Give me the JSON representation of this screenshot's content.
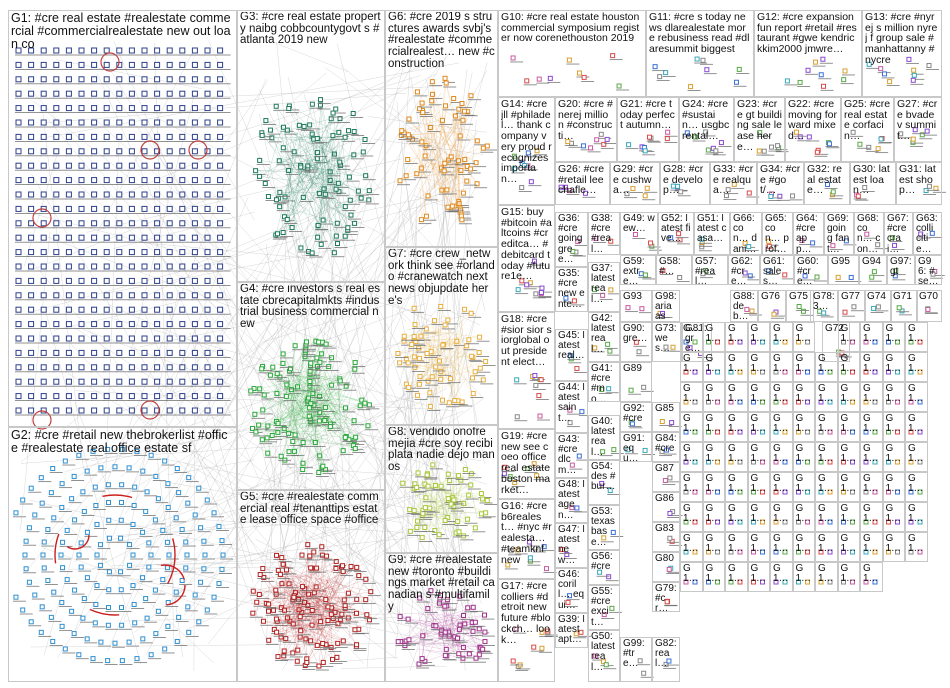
{
  "groups": [
    {
      "id": "G1",
      "label": "G1: #cre real estate #realestate commercial #commercialrealestate new out loan co"
    },
    {
      "id": "G2",
      "label": "G2: #cre #retail new thebrokerlist #office #realestate real office estate sf"
    },
    {
      "id": "G3",
      "label": "G3: #cre real estate property naibg cobbcountygovt s #atlanta 2019 new"
    },
    {
      "id": "G4",
      "label": "G4: #cre investors s real estate cbrecapitalmkts #industrial business commercial new"
    },
    {
      "id": "G5",
      "label": "G5: #cre #realestate commercial real #tenanttips estate lease office space #office"
    },
    {
      "id": "G6",
      "label": "G6: #cre 2019 s structures awards svbj's #realestate #commercialrealest… new #construction"
    },
    {
      "id": "G7",
      "label": "G7: #cre crew_network think see #orlando #cranewatch next news objupdate here's"
    },
    {
      "id": "G8",
      "label": "G8: vendido onofre mejia #cre soy recibi plata nadie dejo manos"
    },
    {
      "id": "G9",
      "label": "G9: #cre #realestate new #toronto #buildings market #retail canadian s #multifamily"
    },
    {
      "id": "G10",
      "label": "G10: #cre real estate houston commercial symposium register now corenethouston 2019"
    },
    {
      "id": "G11",
      "label": "G11: #cre s today news dlarealestate more rebusiness read #dlaresummit biggest"
    },
    {
      "id": "G12",
      "label": "G12: #cre expansion fun report #retail #restaurant #gwe kendrickkim2000 jmwre…"
    },
    {
      "id": "G13",
      "label": "G13: #cre #nyrej s million nyrej f group sale #manhattanny #nycre"
    },
    {
      "id": "G14",
      "label": "G14: #cre jll #philadel… thank company very proud recognizes importan…"
    },
    {
      "id": "G15",
      "label": "G15: buy #bitcoin #altcoins #creditca… #debitcard today #future1e…"
    },
    {
      "id": "G16",
      "label": "G16: #cre b6realest… #nyc #realesta… #teamknf new"
    },
    {
      "id": "G17",
      "label": "G17: #cre colliers #detroit new future #blockch… look…"
    },
    {
      "id": "G18",
      "label": "G18: #cre #sior sior siorglobal out president elect…"
    },
    {
      "id": "G19",
      "label": "G19: #cre new see coeo office real estate boston market…"
    },
    {
      "id": "G20",
      "label": "G20: #cre #nerej million #constructi…"
    },
    {
      "id": "G21",
      "label": "G21: #cre today perfect autumn…"
    },
    {
      "id": "G22",
      "label": "G22: #cre moving forward mixed…"
    },
    {
      "id": "G23",
      "label": "G23: #cre gt building sale lease here…"
    },
    {
      "id": "G24",
      "label": "G24: #cre #sustain… usgbc rental…"
    },
    {
      "id": "G25",
      "label": "G25: #cre real estate corfacin…"
    },
    {
      "id": "G26",
      "label": "G26: #cre #retail leechafle…"
    },
    {
      "id": "G27",
      "label": "G27: #cre bvadev summit…"
    },
    {
      "id": "G28",
      "label": "G28: #cre develop…"
    },
    {
      "id": "G29",
      "label": "G29: #cre cushwa…"
    },
    {
      "id": "G30",
      "label": "G30: latest loan…"
    },
    {
      "id": "G31",
      "label": "G31: latest shop…"
    },
    {
      "id": "G32",
      "label": "G32: real estate…"
    },
    {
      "id": "G33",
      "label": "G33: #cre realqua…"
    },
    {
      "id": "G34",
      "label": "G34: #cre #got/…"
    },
    {
      "id": "G35",
      "label": "G35: #cre new ente…"
    },
    {
      "id": "G36",
      "label": "G36: #cre going gree…"
    },
    {
      "id": "G37",
      "label": "G37: latest real…"
    },
    {
      "id": "G38",
      "label": "G38: #cre #real…"
    },
    {
      "id": "G39",
      "label": "G39: latest apt…"
    },
    {
      "id": "G40",
      "label": "G40: latest real…"
    },
    {
      "id": "G41",
      "label": "G41: #cre #mo…"
    },
    {
      "id": "G42",
      "label": "G42: latest real…"
    },
    {
      "id": "G43",
      "label": "G43: #cre dlcm…"
    },
    {
      "id": "G44",
      "label": "G44: latest saint…"
    },
    {
      "id": "G45",
      "label": "G45: latest real…"
    },
    {
      "id": "G46",
      "label": "G46: corill… equi…"
    },
    {
      "id": "G47",
      "label": "G47: latest new…"
    },
    {
      "id": "G48",
      "label": "G48: latest agen…"
    },
    {
      "id": "G49",
      "label": "G49: wew…"
    },
    {
      "id": "G50",
      "label": "G50: latest real…"
    },
    {
      "id": "G51",
      "label": "G51: latest casa…"
    },
    {
      "id": "G52",
      "label": "G52: latest five…"
    },
    {
      "id": "G53",
      "label": "G53: texas base…"
    },
    {
      "id": "G54",
      "label": "G54: des #bur…"
    },
    {
      "id": "G55",
      "label": "G55: #cre excit…"
    },
    {
      "id": "G56",
      "label": "G56: #cre"
    },
    {
      "id": "G57",
      "label": "G57: #real…"
    },
    {
      "id": "G58",
      "label": "G58: #…"
    },
    {
      "id": "G59",
      "label": "G59: extre…"
    },
    {
      "id": "G60",
      "label": "G60: #cre…"
    },
    {
      "id": "G61",
      "label": "G61: sales…"
    },
    {
      "id": "G62",
      "label": "G62: #cre…"
    },
    {
      "id": "G63",
      "label": "G63: colli citie…"
    },
    {
      "id": "G64",
      "label": "G64: #cre app…"
    },
    {
      "id": "G65",
      "label": "G65: con… prof…"
    },
    {
      "id": "G66",
      "label": "G66: con… dani…"
    },
    {
      "id": "G67",
      "label": "G67: #cre crai…"
    },
    {
      "id": "G68",
      "label": "G68: con… con…"
    },
    {
      "id": "G69",
      "label": "G69: going fant…"
    },
    {
      "id": "G70",
      "label": "G70"
    },
    {
      "id": "G71",
      "label": "G71"
    },
    {
      "id": "G72",
      "label": "G72"
    },
    {
      "id": "G73",
      "label": "G73: wes…"
    },
    {
      "id": "G74",
      "label": "G74"
    },
    {
      "id": "G75",
      "label": "G75"
    },
    {
      "id": "G76",
      "label": "G76"
    },
    {
      "id": "G77",
      "label": "G77"
    },
    {
      "id": "G78",
      "label": "G78: 3…"
    },
    {
      "id": "G79",
      "label": "G79: #cr…"
    },
    {
      "id": "G80",
      "label": "G80"
    },
    {
      "id": "G81",
      "label": "G81: gre…"
    },
    {
      "id": "G82",
      "label": "G82: real…"
    },
    {
      "id": "G83",
      "label": "G83"
    },
    {
      "id": "G84",
      "label": "G84: #cre"
    },
    {
      "id": "G85",
      "label": "G85"
    },
    {
      "id": "G86",
      "label": "G86"
    },
    {
      "id": "G87",
      "label": "G87"
    },
    {
      "id": "G88",
      "label": "G88: deb…"
    },
    {
      "id": "G89",
      "label": "G89"
    },
    {
      "id": "G90",
      "label": "G90: gre…"
    },
    {
      "id": "G91",
      "label": "G91: equ…"
    },
    {
      "id": "G92",
      "label": "G92: #cre"
    },
    {
      "id": "G93",
      "label": "G93"
    },
    {
      "id": "G94",
      "label": "G94"
    },
    {
      "id": "G95",
      "label": "G95"
    },
    {
      "id": "G96",
      "label": "G96: #se…"
    },
    {
      "id": "G97",
      "label": "G97: gt"
    },
    {
      "id": "G98",
      "label": "G98: aria ass…"
    },
    {
      "id": "G99",
      "label": "G99: #tre…"
    }
  ],
  "tiny_group_labels": [
    "G…",
    "G1…",
    "G1…",
    "G1…",
    "G1…",
    "G1…",
    "G1…",
    "G1…",
    "G1…",
    "G1…",
    "G1…",
    "G1…",
    "G1…",
    "G1…",
    "G1…",
    "G1…",
    "G1…",
    "G1…",
    "G1…",
    "G1…",
    "G1…",
    "G1…",
    "G1…",
    "G1…",
    "G1…",
    "G1…",
    "G1…",
    "G1…",
    "G1…",
    "G1…",
    "G1…",
    "G1…",
    "G1…",
    "G1…",
    "G1…",
    "G1…",
    "G1…",
    "G1…",
    "G1…",
    "G1…",
    "G1…",
    "G1…",
    "G1…",
    "G1…",
    "G1…",
    "G1…",
    "G1…",
    "G1…",
    "G1…",
    "G1…",
    "G1…",
    "G1…",
    "G1…",
    "G1…",
    "G1…",
    "G1…",
    "G1…",
    "G1…",
    "G1…",
    "G1…",
    "G1…",
    "G1…",
    "G1…",
    "G1…",
    "G1…",
    "G1…",
    "G1…",
    "G1…",
    "G1…",
    "G1…",
    "G1…",
    "G1…",
    "G1…",
    "G1…",
    "G1…",
    "G1…",
    "G1…",
    "G1…",
    "G1…",
    "G1…",
    "G1…",
    "G1…",
    "G1…",
    "G1…",
    "G1…",
    "G1…",
    "G1…",
    "G1…",
    "G1…",
    "G1…",
    "G1…",
    "G1…",
    "G1…",
    "G1…",
    "G1…",
    "G1…"
  ],
  "colors": {
    "G1": "#2c3f8a",
    "G2": "#2f8fd0",
    "G3": "#1f7a5a",
    "G4": "#2aa83a",
    "G5": "#b22222",
    "G6": "#e08a1e",
    "G7": "#e8b040",
    "G8": "#a8c83a",
    "G9": "#a0308a",
    "small": [
      "#3a6fd8",
      "#5aa848",
      "#d84a4a",
      "#8a4ad0",
      "#38a8b8",
      "#d8a030",
      "#888888",
      "#c85aa0"
    ],
    "edge": "#9a9a9a",
    "box_border": "#c8c8c8"
  }
}
